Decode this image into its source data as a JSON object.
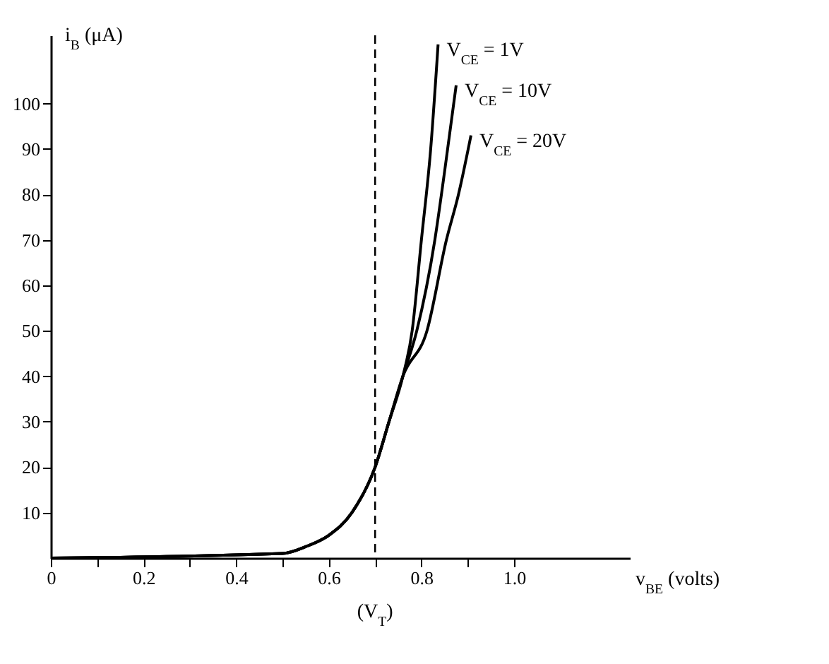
{
  "chart_data": {
    "type": "line",
    "xlabel": "v$_{BE}$ (volts)",
    "ylabel": "i$_{B}$ (μA)",
    "xlim": [
      0,
      1.25
    ],
    "ylim": [
      0,
      115
    ],
    "xticks": [
      0,
      {
        "value": 0.1,
        "label": null
      },
      0.2,
      {
        "value": 0.3,
        "label": null
      },
      0.4,
      {
        "value": 0.5,
        "label": null
      },
      0.6,
      {
        "value": 0.7,
        "label": null
      },
      0.8,
      {
        "value": 0.9,
        "label": null
      },
      {
        "value": 1,
        "label": "1.0"
      }
    ],
    "yticks": [
      10,
      20,
      30,
      40,
      50,
      60,
      70,
      80,
      90,
      100
    ],
    "series": [
      {
        "name": "V$_{CE}$ = 1V",
        "color": "#000000",
        "x": [
          0,
          0.5,
          0.55,
          0.6,
          0.65,
          0.7,
          0.73,
          0.76,
          0.78,
          0.8,
          0.82,
          0.836
        ],
        "values": [
          0,
          1,
          2.5,
          5,
          10,
          20,
          30,
          40,
          50,
          70,
          90,
          113
        ]
      },
      {
        "name": "V$_{CE}$ = 10V",
        "color": "#000000",
        "x": [
          0,
          0.5,
          0.55,
          0.6,
          0.65,
          0.7,
          0.73,
          0.76,
          0.79,
          0.829,
          0.85,
          0.875
        ],
        "values": [
          0,
          1,
          2.5,
          5,
          10,
          20,
          30,
          40,
          50,
          70,
          85,
          104
        ]
      },
      {
        "name": "V$_{CE}$ = 20V",
        "color": "#000000",
        "x": [
          0,
          0.5,
          0.55,
          0.6,
          0.65,
          0.7,
          0.73,
          0.76,
          0.812,
          0.854,
          0.88,
          0.907
        ],
        "values": [
          0,
          1,
          2.5,
          5,
          10,
          20,
          30,
          40,
          50,
          70,
          80,
          93
        ]
      }
    ],
    "ref_lines": [
      {
        "axis": "x",
        "value": 0.7,
        "label": "(V$_{T}$)",
        "line_style": "dashed"
      }
    ],
    "grid": false,
    "legend": false,
    "marker": "none",
    "line_style": "solid"
  }
}
